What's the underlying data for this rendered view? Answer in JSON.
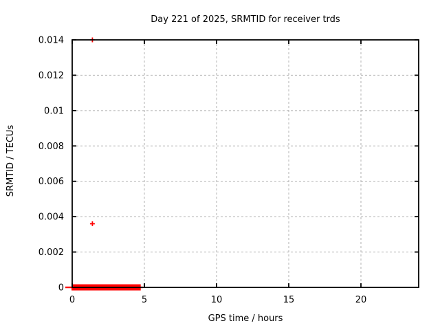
{
  "chart_data": {
    "type": "scatter",
    "title": "Day 221 of 2025, SRMTID for receiver trds",
    "xlabel": "GPS time / hours",
    "ylabel": "SRMTID / TECUs",
    "xlim": [
      0,
      24
    ],
    "ylim": [
      0,
      0.014
    ],
    "xticks": [
      {
        "value": 0,
        "label": "0"
      },
      {
        "value": 5,
        "label": "5"
      },
      {
        "value": 10,
        "label": "10"
      },
      {
        "value": 15,
        "label": "15"
      },
      {
        "value": 20,
        "label": "20"
      }
    ],
    "yticks": [
      {
        "value": 0,
        "label": "0"
      },
      {
        "value": 0.002,
        "label": "0.002"
      },
      {
        "value": 0.004,
        "label": "0.004"
      },
      {
        "value": 0.006,
        "label": "0.006"
      },
      {
        "value": 0.008,
        "label": "0.008"
      },
      {
        "value": 0.01,
        "label": "0.01"
      },
      {
        "value": 0.012,
        "label": "0.012"
      },
      {
        "value": 0.014,
        "label": "0.014"
      }
    ],
    "grid": "dashed",
    "legend_position": "none",
    "marker": "plus",
    "series": [
      {
        "name": "SRMTID receiver trds",
        "color": "#ff0000",
        "outlier_points": [
          [
            1.4,
            0.0036
          ],
          [
            1.4,
            0.014
          ]
        ],
        "dense_band": {
          "y": 0.0,
          "x_start": 0.0,
          "x_end": 4.7,
          "description": "many overlapping + markers at SRMTID near 0 between 0 h and about 4.7 h"
        }
      }
    ],
    "colors": {
      "points": "#ff0000",
      "grid": "#b0b0b0",
      "axis": "#000000",
      "background": "#ffffff"
    }
  }
}
